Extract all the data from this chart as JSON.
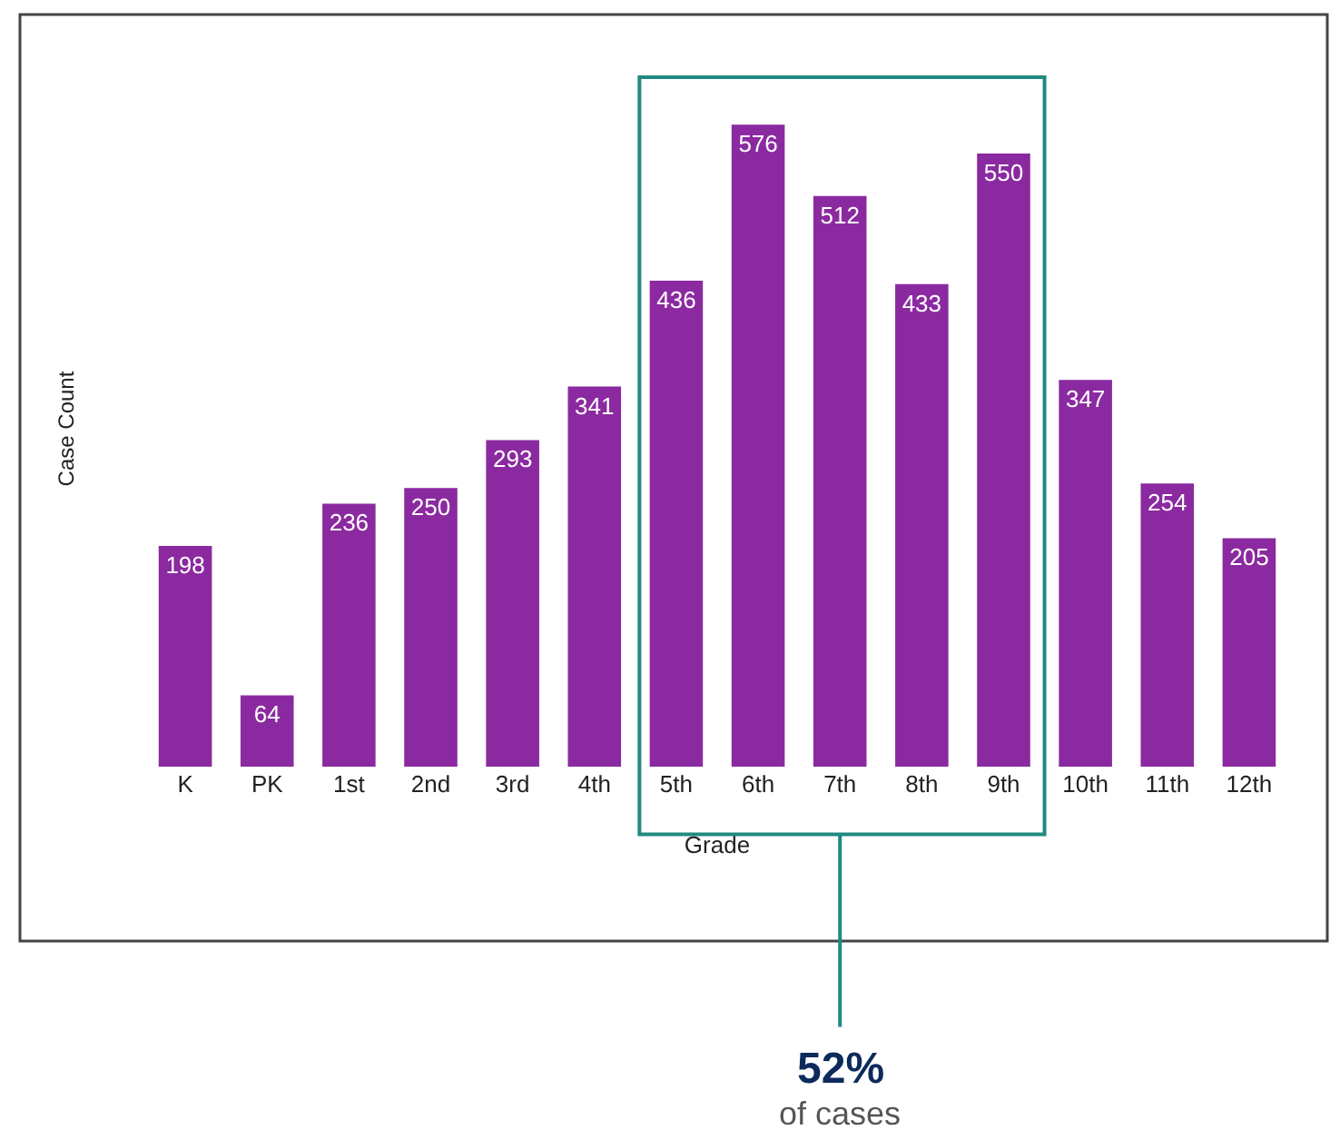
{
  "chart_data": {
    "type": "bar",
    "xlabel": "Grade",
    "ylabel": "Case Count",
    "categories": [
      "K",
      "PK",
      "1st",
      "2nd",
      "3rd",
      "4th",
      "5th",
      "6th",
      "7th",
      "8th",
      "9th",
      "10th",
      "11th",
      "12th"
    ],
    "values": [
      198,
      64,
      236,
      250,
      293,
      341,
      436,
      576,
      512,
      433,
      550,
      347,
      254,
      205
    ],
    "color": "#8b2aa0",
    "data_labels": true,
    "tick_labels": "x",
    "annotations": [
      "52%",
      "of cases"
    ]
  }
}
